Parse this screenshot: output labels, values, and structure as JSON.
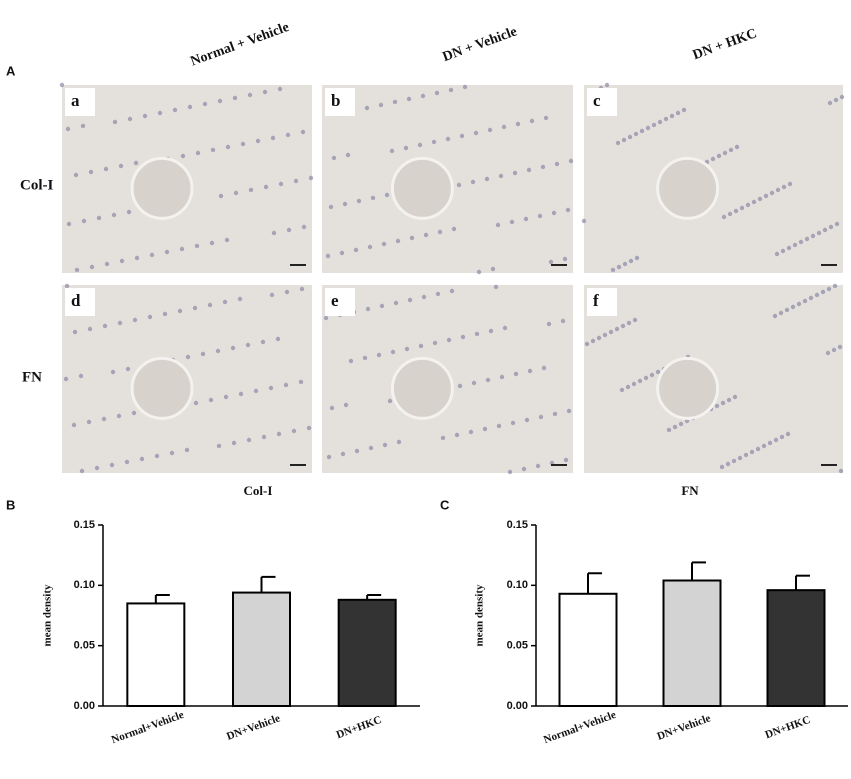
{
  "figure": {
    "labels": [
      "A",
      "B",
      "C"
    ],
    "column_headers": [
      "Normal + Vehicle",
      "DN + Vehicle",
      "DN + HKC"
    ],
    "row_labels": [
      "Col-I",
      "FN"
    ],
    "panels": [
      "a",
      "b",
      "c",
      "d",
      "e",
      "f"
    ]
  },
  "chart_data": [
    {
      "type": "bar",
      "title": "Col-I",
      "y_label": "mean density",
      "categories": [
        "Normal+Vehicle",
        "DN+Vehicle",
        "DN+HKC"
      ],
      "values": [
        0.085,
        0.094,
        0.088
      ],
      "errors": [
        0.007,
        0.013,
        0.004
      ],
      "colors": [
        "#ffffff",
        "#d3d3d3",
        "#333333"
      ],
      "ylim": [
        0,
        0.15
      ],
      "yticks": [
        {
          "value": 0,
          "label": "0.00"
        },
        {
          "value": 0.05,
          "label": "0.05"
        },
        {
          "value": 0.1,
          "label": "0.10"
        },
        {
          "value": 0.15,
          "label": "0.15"
        }
      ]
    },
    {
      "type": "bar",
      "title": "FN",
      "y_label": "mean density",
      "categories": [
        "Normal+Vehicle",
        "DN+Vehicle",
        "DN+HKC"
      ],
      "values": [
        0.093,
        0.104,
        0.096
      ],
      "errors": [
        0.017,
        0.015,
        0.012
      ],
      "colors": [
        "#ffffff",
        "#d3d3d3",
        "#333333"
      ],
      "ylim": [
        0,
        0.15
      ],
      "yticks": [
        {
          "value": 0,
          "label": "0.00"
        },
        {
          "value": 0.05,
          "label": "0.05"
        },
        {
          "value": 0.1,
          "label": "0.10"
        },
        {
          "value": 0.15,
          "label": "0.15"
        }
      ]
    }
  ]
}
